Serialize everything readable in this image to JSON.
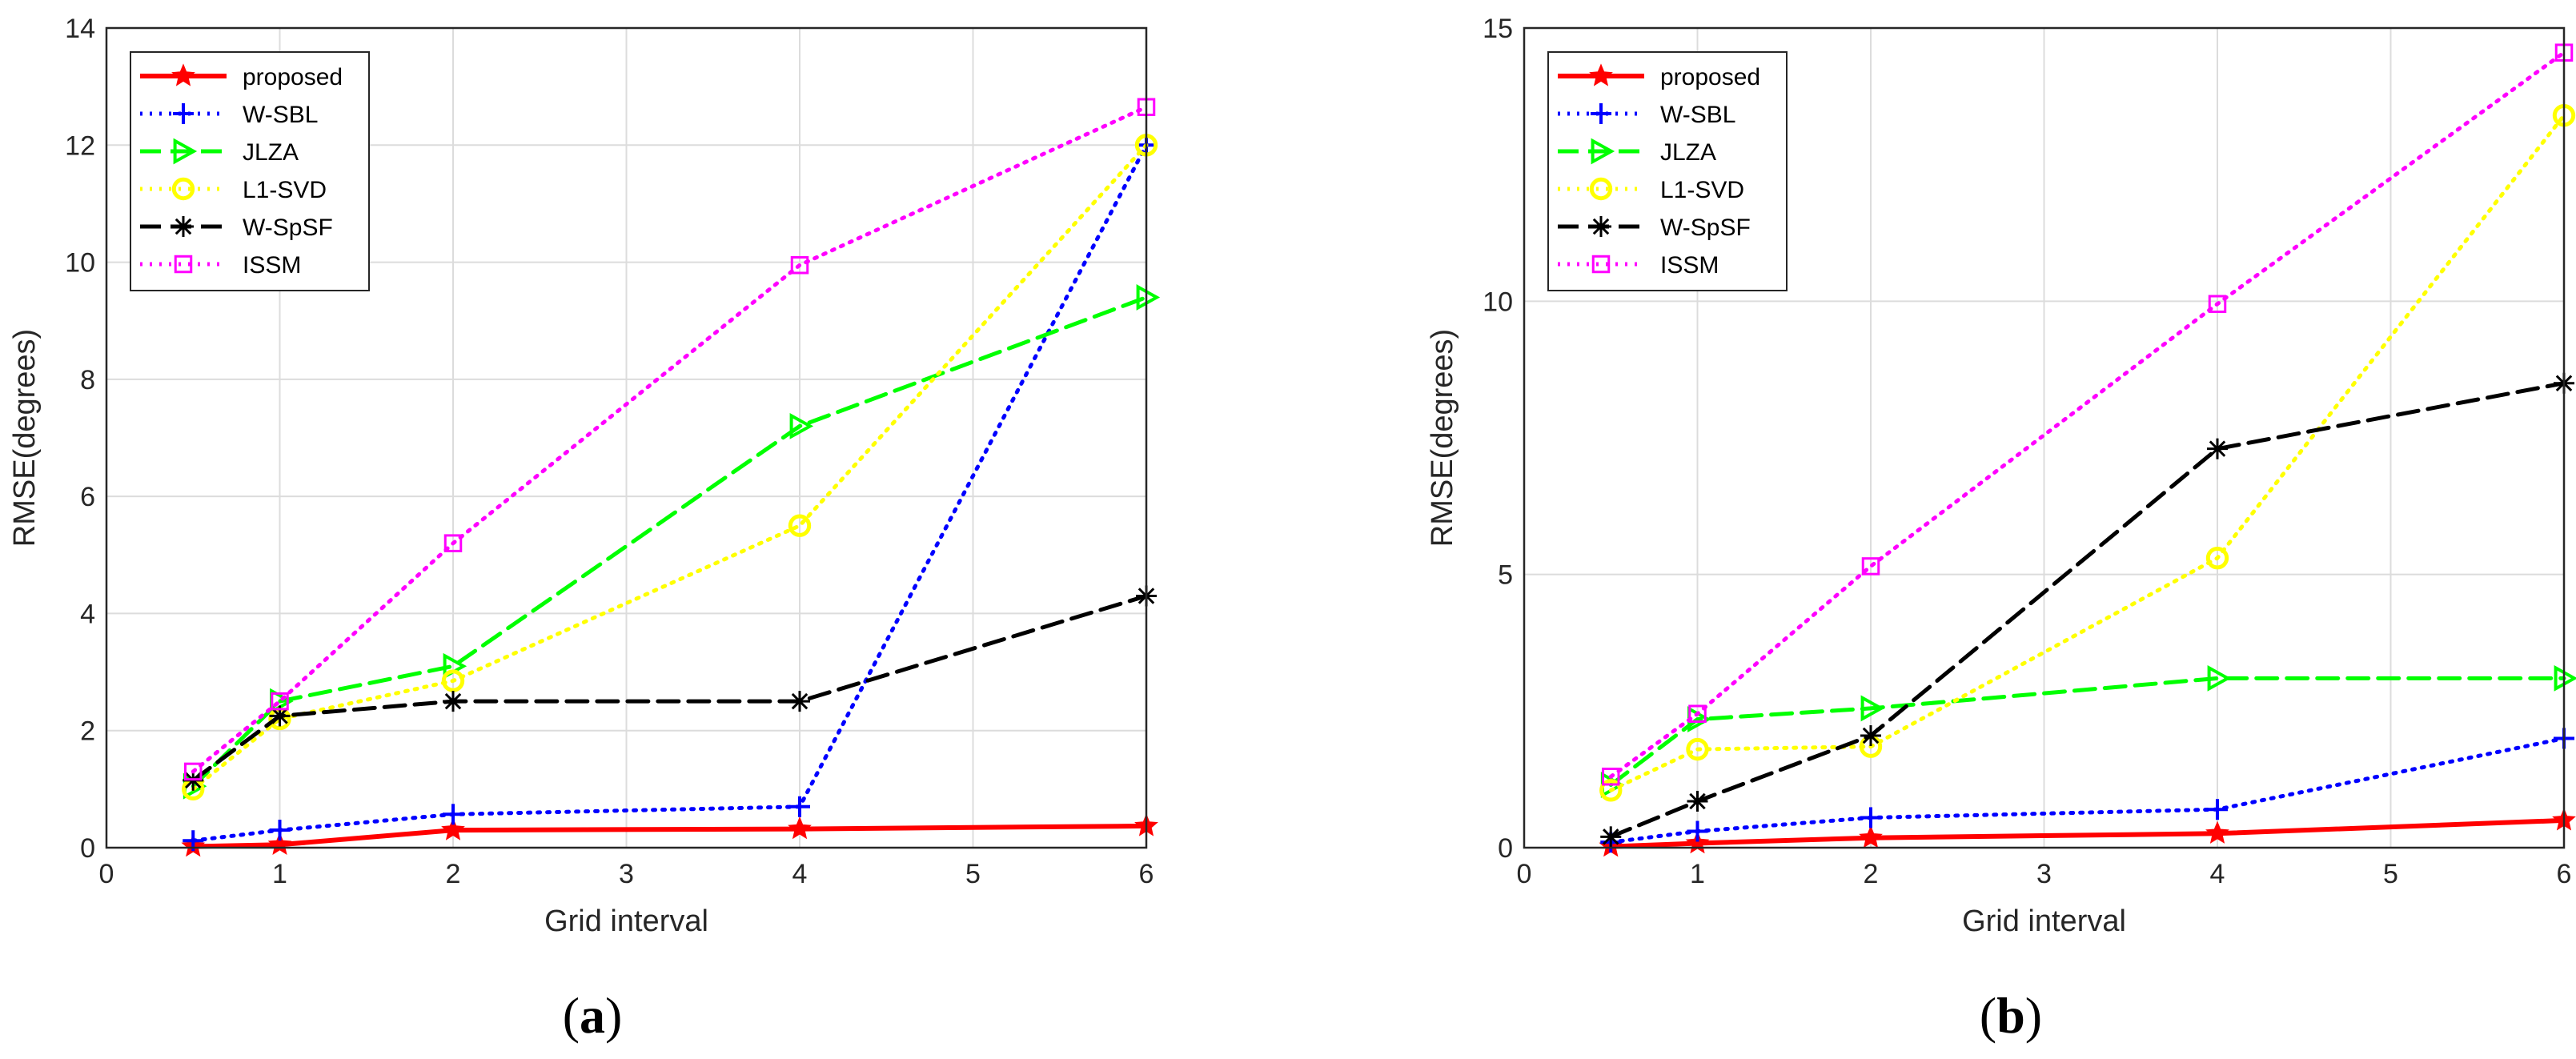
{
  "chart_data": [
    {
      "type": "line",
      "caption": "a",
      "xlabel": "Grid interval",
      "ylabel": "RMSE(degrees)",
      "xlim": [
        0,
        6
      ],
      "ylim": [
        0,
        14
      ],
      "xticks": [
        0,
        1,
        2,
        3,
        4,
        5,
        6
      ],
      "yticks": [
        0,
        2,
        4,
        6,
        8,
        10,
        12,
        14
      ],
      "grid": true,
      "legend_position": "top-left",
      "x": [
        0.5,
        1,
        2,
        4,
        6
      ],
      "series": [
        {
          "name": "proposed",
          "color": "#ff0000",
          "style": "solid",
          "marker": "star",
          "values": [
            0.02,
            0.05,
            0.3,
            0.32,
            0.37
          ]
        },
        {
          "name": "W-SBL",
          "color": "#0000ff",
          "style": "dotted",
          "marker": "plus",
          "values": [
            0.12,
            0.3,
            0.57,
            0.7,
            12.0
          ]
        },
        {
          "name": "JLZA",
          "color": "#00ff00",
          "style": "dashed",
          "marker": "triangle-right",
          "values": [
            1.05,
            2.5,
            3.1,
            7.2,
            9.4
          ]
        },
        {
          "name": "L1-SVD",
          "color": "#ffff00",
          "style": "dotted",
          "marker": "circle",
          "values": [
            1.0,
            2.2,
            2.85,
            5.5,
            12.0
          ]
        },
        {
          "name": "W-SpSF",
          "color": "#000000",
          "style": "dashed",
          "marker": "asterisk",
          "values": [
            1.15,
            2.25,
            2.5,
            2.5,
            4.3
          ]
        },
        {
          "name": "ISSM",
          "color": "#ff00ff",
          "style": "dotted",
          "marker": "square",
          "values": [
            1.3,
            2.5,
            5.2,
            9.95,
            12.65
          ]
        }
      ]
    },
    {
      "type": "line",
      "caption": "b",
      "xlabel": "Grid interval",
      "ylabel": "RMSE(degrees)",
      "xlim": [
        0,
        6
      ],
      "ylim": [
        0,
        15
      ],
      "xticks": [
        0,
        1,
        2,
        3,
        4,
        5,
        6
      ],
      "yticks": [
        0,
        5,
        10,
        15
      ],
      "grid": true,
      "legend_position": "top-left",
      "x": [
        0.5,
        1,
        2,
        4,
        6
      ],
      "series": [
        {
          "name": "proposed",
          "color": "#ff0000",
          "style": "solid",
          "marker": "star",
          "values": [
            0.02,
            0.08,
            0.18,
            0.26,
            0.5
          ]
        },
        {
          "name": "W-SBL",
          "color": "#0000ff",
          "style": "dotted",
          "marker": "plus",
          "values": [
            0.1,
            0.3,
            0.55,
            0.7,
            2.0
          ]
        },
        {
          "name": "JLZA",
          "color": "#00ff00",
          "style": "dashed",
          "marker": "triangle-right",
          "values": [
            1.15,
            2.35,
            2.55,
            3.1,
            3.1
          ]
        },
        {
          "name": "L1-SVD",
          "color": "#ffff00",
          "style": "dotted",
          "marker": "circle",
          "values": [
            1.05,
            1.8,
            1.85,
            5.3,
            13.4
          ]
        },
        {
          "name": "W-SpSF",
          "color": "#000000",
          "style": "dashed",
          "marker": "asterisk",
          "values": [
            0.2,
            0.85,
            2.05,
            7.3,
            8.5
          ]
        },
        {
          "name": "ISSM",
          "color": "#ff00ff",
          "style": "dotted",
          "marker": "square",
          "values": [
            1.3,
            2.45,
            5.15,
            9.95,
            14.55
          ]
        }
      ]
    }
  ]
}
